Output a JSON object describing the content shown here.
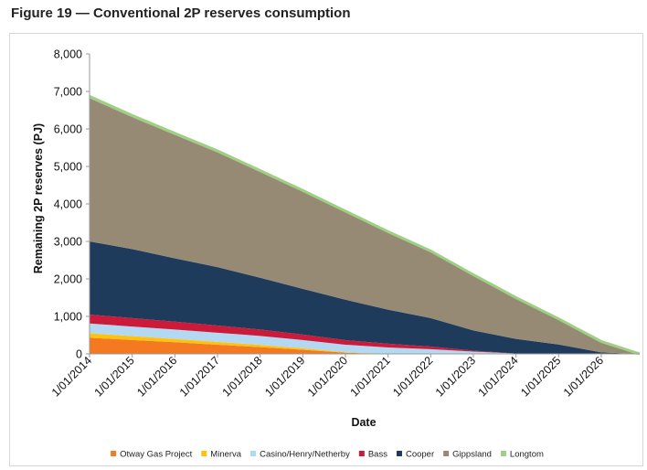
{
  "figure_title": "Figure 19 — Conventional 2P reserves consumption",
  "chart_data": {
    "type": "area",
    "stacked": true,
    "title": "",
    "xlabel": "Date",
    "ylabel": "Remaining 2P reserves (PJ)",
    "ylim": [
      0,
      8000
    ],
    "y_ticks": [
      0,
      1000,
      2000,
      3000,
      4000,
      5000,
      6000,
      7000,
      8000
    ],
    "y_tick_labels": [
      "0",
      "1,000",
      "2,000",
      "3,000",
      "4,000",
      "5,000",
      "6,000",
      "7,000",
      "8,000"
    ],
    "x_range": [
      2014,
      2026.9
    ],
    "x_ticks": [
      2014,
      2015,
      2016,
      2017,
      2018,
      2019,
      2020,
      2021,
      2022,
      2023,
      2024,
      2025,
      2026
    ],
    "x_tick_labels": [
      "1/01/2014",
      "1/01/2015",
      "1/01/2016",
      "1/01/2017",
      "1/01/2018",
      "1/01/2019",
      "1/01/2020",
      "1/01/2021",
      "1/01/2022",
      "1/01/2023",
      "1/01/2024",
      "1/01/2025",
      "1/01/2026"
    ],
    "grid": false,
    "legend_position": "bottom",
    "x": [
      2014,
      2015,
      2016,
      2017,
      2018,
      2019,
      2020,
      2021,
      2022,
      2023,
      2024,
      2025,
      2026,
      2026.9
    ],
    "series": [
      {
        "name": "Otway Gas Project",
        "color": "#f47920",
        "values": [
          430,
          370,
          310,
          245,
          180,
          110,
          30,
          0,
          0,
          0,
          0,
          0,
          0,
          0
        ]
      },
      {
        "name": "Minerva",
        "color": "#ffc20e",
        "values": [
          120,
          105,
          90,
          75,
          60,
          40,
          15,
          0,
          0,
          0,
          0,
          0,
          0,
          0
        ]
      },
      {
        "name": "Casino/Henry/Netherby",
        "color": "#b3d9f2",
        "values": [
          260,
          255,
          250,
          245,
          240,
          220,
          200,
          170,
          125,
          60,
          10,
          0,
          0,
          0
        ]
      },
      {
        "name": "Bass",
        "color": "#cc1b3a",
        "values": [
          240,
          225,
          210,
          190,
          170,
          145,
          120,
          100,
          70,
          25,
          0,
          0,
          0,
          0
        ]
      },
      {
        "name": "Cooper",
        "color": "#1f3b5c",
        "values": [
          1950,
          1840,
          1690,
          1560,
          1380,
          1220,
          1080,
          910,
          760,
          540,
          390,
          250,
          40,
          0
        ]
      },
      {
        "name": "Gippsland",
        "color": "#968a74",
        "values": [
          3820,
          3520,
          3290,
          3060,
          2820,
          2590,
          2330,
          2050,
          1760,
          1460,
          1080,
          670,
          280,
          0
        ]
      },
      {
        "name": "Longtom",
        "color": "#9fcf84",
        "values": [
          50,
          45,
          45,
          40,
          40,
          35,
          35,
          30,
          30,
          25,
          20,
          15,
          10,
          0
        ]
      }
    ]
  }
}
